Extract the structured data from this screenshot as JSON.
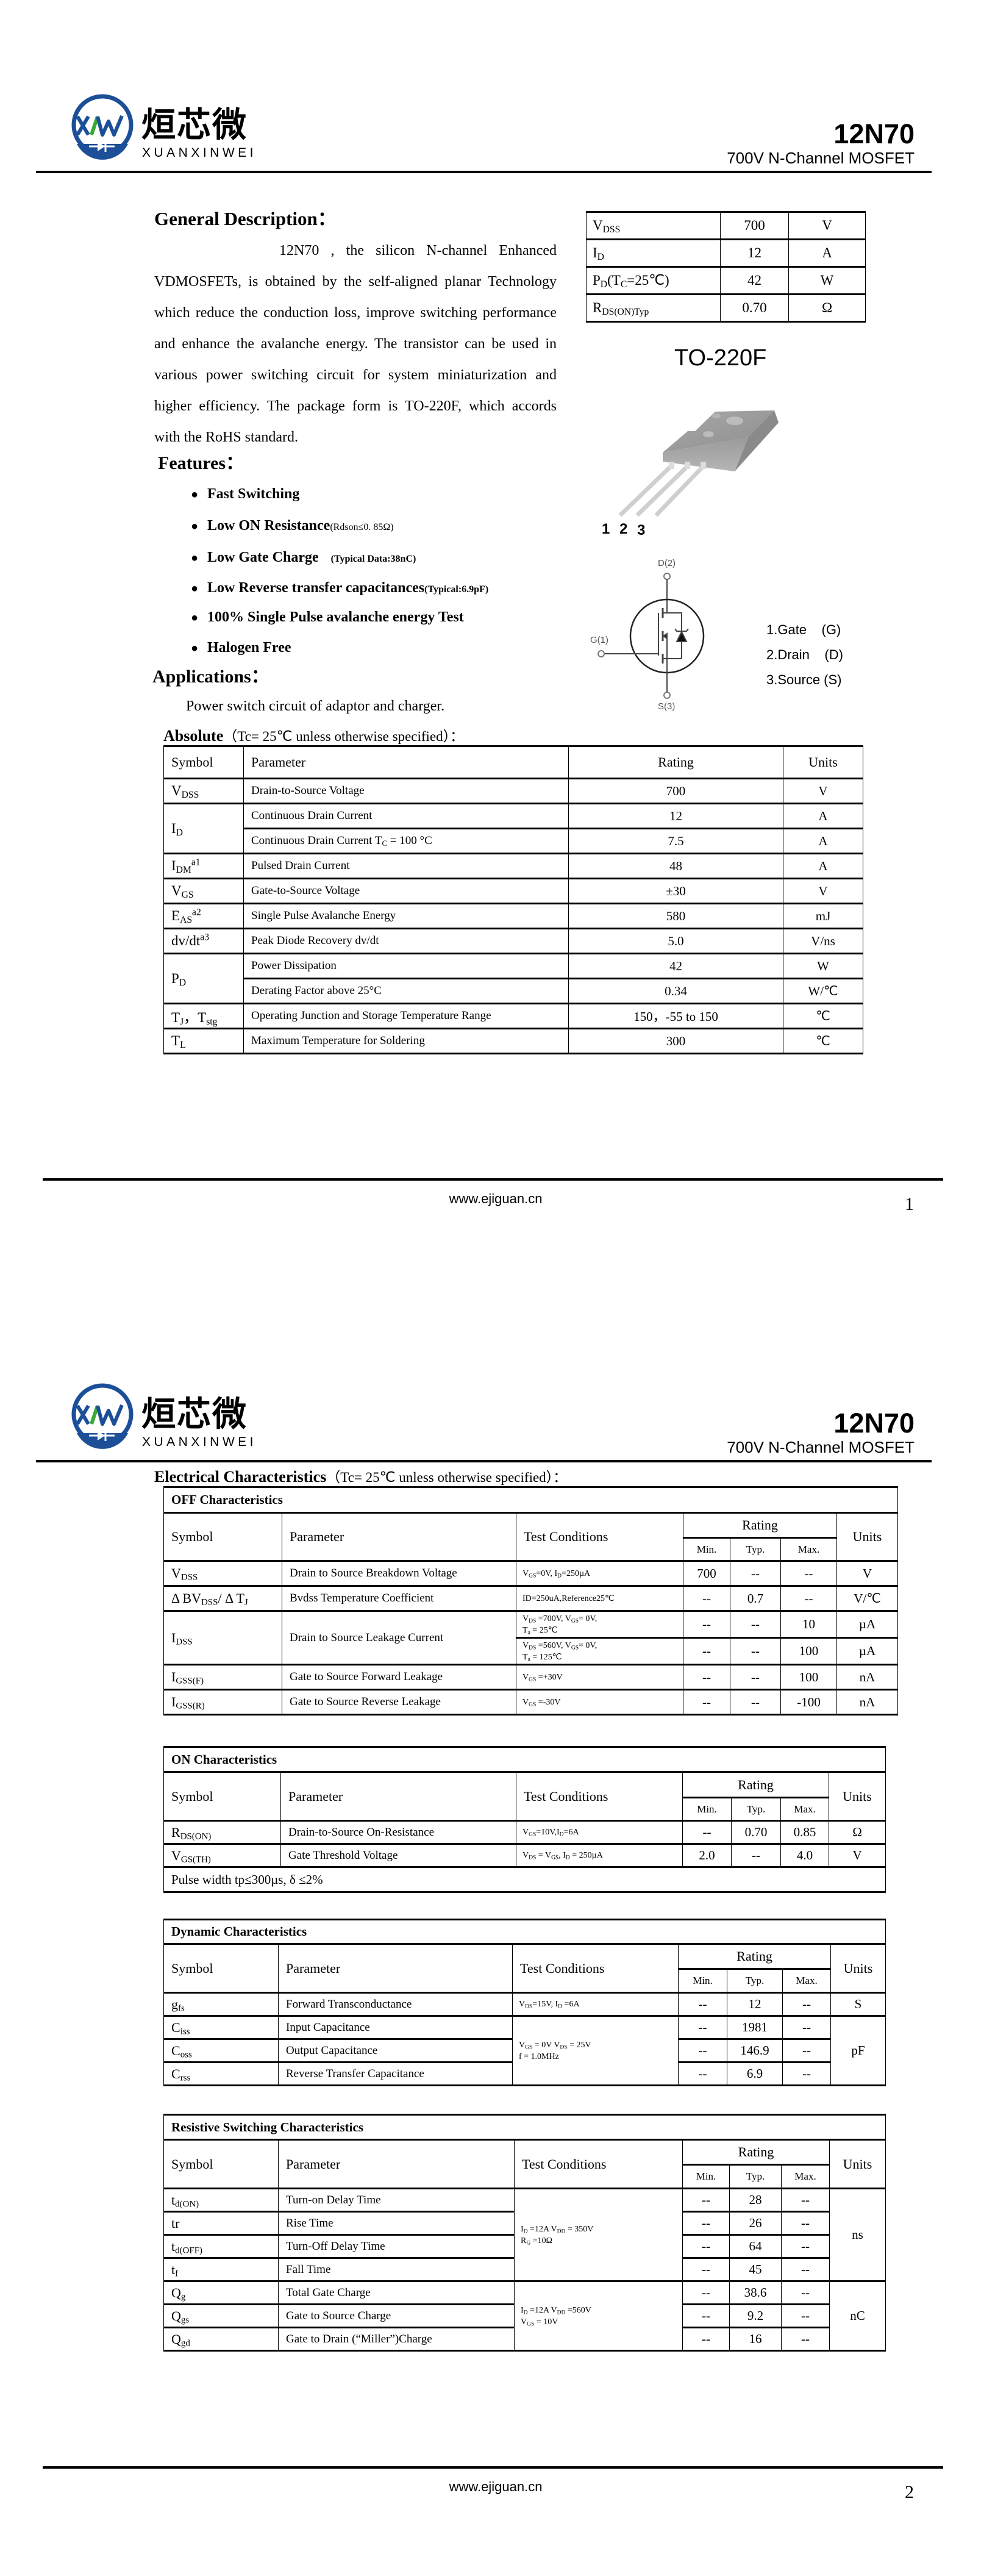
{
  "brand": {
    "logo_mark": "XXW",
    "logo_cn": "烜芯微",
    "logo_en": "XUANXINWEI",
    "color_blue": "#1c4f98",
    "color_green": "#3aaa35"
  },
  "header": {
    "part": "12N70",
    "subtitle": "700V N-Channel MOSFET"
  },
  "page1": {
    "general_description": {
      "title": "General Description：",
      "text": "12N70 , the silicon N-channel Enhanced VDMOSFETs, is obtained by the self-aligned planar Technology which reduce the conduction loss, improve switching performance and enhance the avalanche energy. The transistor can be used in various power switching circuit for system miniaturization and higher efficiency. The package form is TO-220F, which accords with the RoHS standard."
    },
    "summary_table": [
      {
        "symbol": [
          "V",
          {
            "sub": "DSS"
          }
        ],
        "value": "700",
        "unit": "V"
      },
      {
        "symbol": [
          "I",
          {
            "sub": "D"
          }
        ],
        "value": "12",
        "unit": "A"
      },
      {
        "symbol": [
          "P",
          {
            "sub": "D"
          },
          "(T",
          {
            "sub": "C"
          },
          "=25℃)"
        ],
        "value": "42",
        "unit": "W"
      },
      {
        "symbol": [
          "R",
          {
            "sub": "DS(ON)Typ"
          }
        ],
        "value": "0.70",
        "unit": "Ω"
      }
    ],
    "package": {
      "name": "TO-220F",
      "pins": [
        "1",
        "2",
        "3"
      ]
    },
    "schematic": {
      "drain": "D(2)",
      "gate": "G(1)",
      "source": "S(3)"
    },
    "pin_legend": [
      "1.Gate    (G)",
      "2.Drain    (D)",
      "3.Source (S)"
    ],
    "features": {
      "title": "Features：",
      "items": [
        {
          "label": "Fast Switching"
        },
        {
          "label": "Low ON Resistance",
          "note": "(Rdson≤0. 85Ω)"
        },
        {
          "label": "Low Gate Charge",
          "note": "(Typical Data:38nC)"
        },
        {
          "label": "Low Reverse transfer capacitances",
          "note": "(Typical:6.9pF)"
        },
        {
          "label": "100% Single Pulse avalanche energy Test"
        },
        {
          "label": "Halogen Free"
        }
      ]
    },
    "applications": {
      "title": "Applications：",
      "text": "Power switch circuit of adaptor and charger."
    },
    "absolute": {
      "title_bold": "Absolute",
      "title_rest": "（Tc= 25℃  unless otherwise specified）：",
      "headers": {
        "symbol": "Symbol",
        "parameter": "Parameter",
        "rating": "Rating",
        "units": "Units"
      },
      "rows": [
        {
          "symbol": [
            "V",
            {
              "sub": "DSS"
            }
          ],
          "parameter": "Drain-to-Source Voltage",
          "rating": "700",
          "units": "V"
        },
        {
          "symbol": [
            "I",
            {
              "sub": "D"
            }
          ],
          "parameter": "Continuous Drain Current",
          "rating": "12",
          "units": "A"
        },
        {
          "parameter": [
            "Continuous Drain Current T",
            {
              "sub": "C"
            },
            " = 100 °C"
          ],
          "rating": "7.5",
          "units": "A"
        },
        {
          "symbol": [
            "I",
            {
              "sub": "DM"
            },
            {
              "sup": "a1"
            }
          ],
          "parameter": "Pulsed Drain Current",
          "rating": "48",
          "units": "A"
        },
        {
          "symbol": [
            "V",
            {
              "sub": "GS"
            }
          ],
          "parameter": "Gate-to-Source Voltage",
          "rating": "±30",
          "units": "V"
        },
        {
          "symbol": [
            "E",
            {
              "sub": "AS"
            },
            {
              "sup": "a2"
            }
          ],
          "parameter": "Single Pulse Avalanche Energy",
          "rating": "580",
          "units": "mJ"
        },
        {
          "symbol": [
            "dv/dt",
            {
              "sup": "a3"
            }
          ],
          "parameter": "Peak Diode Recovery dv/dt",
          "rating": "5.0",
          "units": "V/ns"
        },
        {
          "symbol": [
            "P",
            {
              "sub": "D"
            }
          ],
          "parameter": "Power Dissipation",
          "rating": "42",
          "units": "W"
        },
        {
          "parameter": "Derating Factor above 25°C",
          "rating": "0.34",
          "units": "W/℃"
        },
        {
          "symbol": [
            "T",
            {
              "sub": "J"
            },
            "，T",
            {
              "sub": "stg"
            }
          ],
          "parameter": "Operating Junction and Storage Temperature Range",
          "rating": "150，-55 to 150",
          "units": "℃"
        },
        {
          "symbol": [
            "T",
            {
              "sub": "L"
            }
          ],
          "parameter": "Maximum Temperature for Soldering",
          "rating": "300",
          "units": "℃"
        }
      ]
    },
    "footer": {
      "url": "www.ejiguan.cn",
      "page": "1"
    }
  },
  "page2": {
    "title_bold": "Electrical Characteristics",
    "title_rest": "（Tc= 25℃  unless otherwise specified）：",
    "headers": {
      "symbol": "Symbol",
      "parameter": "Parameter",
      "conditions": "Test Conditions",
      "rating": "Rating",
      "min": "Min.",
      "typ": "Typ.",
      "max": "Max.",
      "units": "Units"
    },
    "sections": [
      {
        "title": "OFF Characteristics",
        "rows": [
          {
            "symbol": [
              "V",
              {
                "sub": "DSS"
              }
            ],
            "parameter": "Drain to Source Breakdown Voltage",
            "conditions": [
              "V",
              {
                "sub": "GS"
              },
              "=0V, I",
              {
                "sub": "D"
              },
              "=250µA"
            ],
            "min": "700",
            "typ": "--",
            "max": "--",
            "units": "V"
          },
          {
            "symbol": [
              "Δ BV",
              {
                "sub": "DSS"
              },
              "/ Δ T",
              {
                "sub": "J"
              }
            ],
            "parameter": "Bvdss Temperature Coefficient",
            "conditions": "ID=250uA,Reference25℃",
            "min": "--",
            "typ": "0.7",
            "max": "--",
            "units": "V/℃"
          },
          {
            "symbol": [
              "I",
              {
                "sub": "DSS"
              }
            ],
            "parameter": "Drain to Source Leakage Current",
            "conditions": [
              "V",
              {
                "sub": "DS"
              },
              " =700V, V",
              {
                "sub": "GS"
              },
              "= 0V,\nT",
              {
                "sub": "a"
              },
              " = 25℃"
            ],
            "min": "--",
            "typ": "--",
            "max": "10",
            "units": "µA"
          },
          {
            "conditions": [
              "V",
              {
                "sub": "DS"
              },
              " =560V, V",
              {
                "sub": "GS"
              },
              "= 0V,\nT",
              {
                "sub": "a"
              },
              " = 125℃"
            ],
            "min": "--",
            "typ": "--",
            "max": "100",
            "units": "µA"
          },
          {
            "symbol": [
              "I",
              {
                "sub": "GSS(F)"
              }
            ],
            "parameter": "Gate to Source Forward Leakage",
            "conditions": [
              "V",
              {
                "sub": "GS"
              },
              " =+30V"
            ],
            "min": "--",
            "typ": "--",
            "max": "100",
            "units": "nA"
          },
          {
            "symbol": [
              "I",
              {
                "sub": "GSS(R)"
              }
            ],
            "parameter": "Gate to Source Reverse Leakage",
            "conditions": [
              "V",
              {
                "sub": "GS"
              },
              " =-30V"
            ],
            "min": "--",
            "typ": "--",
            "max": "-100",
            "units": "nA"
          }
        ]
      },
      {
        "title": "ON Characteristics",
        "rows": [
          {
            "symbol": [
              "R",
              {
                "sub": "DS(ON)"
              }
            ],
            "parameter": "Drain-to-Source On-Resistance",
            "conditions": [
              "V",
              {
                "sub": "GS"
              },
              "=10V,I",
              {
                "sub": "D"
              },
              "=6A"
            ],
            "min": "--",
            "typ": "0.70",
            "max": "0.85",
            "units": "Ω"
          },
          {
            "symbol": [
              "V",
              {
                "sub": "GS(TH)"
              }
            ],
            "parameter": "Gate Threshold Voltage",
            "conditions": [
              "V",
              {
                "sub": "DS"
              },
              " = V",
              {
                "sub": "GS"
              },
              ", I",
              {
                "sub": "D"
              },
              " = 250µA"
            ],
            "min": "2.0",
            "typ": "--",
            "max": "4.0",
            "units": "V"
          }
        ],
        "note": "Pulse width tp≤300µs, δ ≤2%"
      },
      {
        "title": "Dynamic Characteristics",
        "rows": [
          {
            "symbol": [
              "g",
              {
                "sub": "fs"
              }
            ],
            "parameter": "Forward Transconductance",
            "conditions": [
              "V",
              {
                "sub": "DS"
              },
              "=15V, I",
              {
                "sub": "D"
              },
              " =6A"
            ],
            "min": "--",
            "typ": "12",
            "max": "--",
            "units": "S"
          },
          {
            "symbol": [
              "C",
              {
                "sub": "iss"
              }
            ],
            "parameter": "Input Capacitance",
            "conditions": [
              "V",
              {
                "sub": "GS"
              },
              " = 0V V",
              {
                "sub": "DS"
              },
              " = 25V\nf = 1.0MHz"
            ],
            "min": "--",
            "typ": "1981",
            "max": "--",
            "units": "pF"
          },
          {
            "symbol": [
              "C",
              {
                "sub": "oss"
              }
            ],
            "parameter": "Output Capacitance",
            "min": "--",
            "typ": "146.9",
            "max": "--"
          },
          {
            "symbol": [
              "C",
              {
                "sub": "rss"
              }
            ],
            "parameter": "Reverse Transfer Capacitance",
            "min": "--",
            "typ": "6.9",
            "max": "--"
          }
        ]
      },
      {
        "title": "Resistive Switching Characteristics",
        "rows": [
          {
            "symbol": [
              "t",
              {
                "sub": "d(ON)"
              }
            ],
            "parameter": "Turn-on Delay Time",
            "conditions": [
              "I",
              {
                "sub": "D"
              },
              " =12A    V",
              {
                "sub": "DD"
              },
              " = 350V\nR",
              {
                "sub": "G"
              },
              " =10Ω"
            ],
            "min": "--",
            "typ": "28",
            "max": "--",
            "units": "ns"
          },
          {
            "symbol": "tr",
            "parameter": "Rise Time",
            "min": "--",
            "typ": "26",
            "max": "--"
          },
          {
            "symbol": [
              "t",
              {
                "sub": "d(OFF)"
              }
            ],
            "parameter": "Turn-Off Delay Time",
            "min": "--",
            "typ": "64",
            "max": "--"
          },
          {
            "symbol": [
              "t",
              {
                "sub": "f"
              }
            ],
            "parameter": "Fall Time",
            "min": "--",
            "typ": "45",
            "max": "--"
          },
          {
            "symbol": [
              "Q",
              {
                "sub": "g"
              }
            ],
            "parameter": "Total Gate Charge",
            "conditions": [
              "I",
              {
                "sub": "D"
              },
              " =12A    V",
              {
                "sub": "DD"
              },
              " =560V\nV",
              {
                "sub": "GS"
              },
              " = 10V"
            ],
            "min": "--",
            "typ": "38.6",
            "max": "--",
            "units": "nC"
          },
          {
            "symbol": [
              "Q",
              {
                "sub": "gs"
              }
            ],
            "parameter": "Gate to Source Charge",
            "min": "--",
            "typ": "9.2",
            "max": "--"
          },
          {
            "symbol": [
              "Q",
              {
                "sub": "gd"
              }
            ],
            "parameter": "Gate to Drain (“Miller”)Charge",
            "min": "--",
            "typ": "16",
            "max": "--"
          }
        ]
      }
    ],
    "footer": {
      "url": "www.ejiguan.cn",
      "page": "2"
    }
  }
}
